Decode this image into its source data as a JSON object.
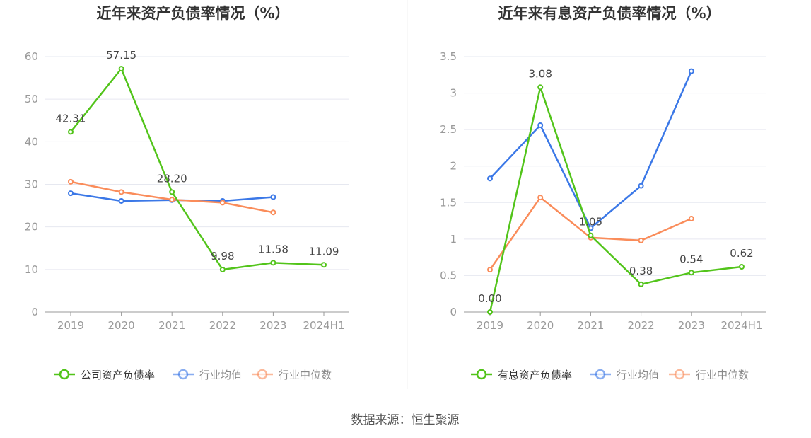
{
  "source": "数据来源：恒生聚源",
  "colors": {
    "company": "#52c41a",
    "avg": "#3b78e7",
    "median": "#fa8c5a",
    "grid": "#e6e8f0",
    "axis": "#999999"
  },
  "chart_data": [
    {
      "type": "line",
      "title": "近年来资产负债率情况（%）",
      "categories": [
        "2019",
        "2020",
        "2021",
        "2022",
        "2023",
        "2024H1"
      ],
      "ylim": [
        0,
        60
      ],
      "yticks": [
        0,
        10,
        20,
        30,
        40,
        50,
        60
      ],
      "ytick_labels": [
        "0",
        "10",
        "20",
        "30",
        "40",
        "50",
        "60"
      ],
      "legend_position": "bottom",
      "series": [
        {
          "name": "公司资产负债率",
          "color": "#52c41a",
          "values": [
            42.31,
            57.15,
            28.2,
            9.98,
            11.58,
            11.09
          ],
          "labels": [
            "42.31",
            "57.15",
            "28.20",
            "9.98",
            "11.58",
            "11.09"
          ]
        },
        {
          "name": "行业均值",
          "color": "#3b78e7",
          "values": [
            27.9,
            26.1,
            26.3,
            26.1,
            27.0,
            null
          ]
        },
        {
          "name": "行业中位数",
          "color": "#fa8c5a",
          "values": [
            30.6,
            28.2,
            26.4,
            25.7,
            23.4,
            null
          ]
        }
      ]
    },
    {
      "type": "line",
      "title": "近年来有息资产负债率情况（%）",
      "categories": [
        "2019",
        "2020",
        "2021",
        "2022",
        "2023",
        "2024H1"
      ],
      "ylim": [
        0,
        3.5
      ],
      "yticks": [
        0,
        0.5,
        1,
        1.5,
        2,
        2.5,
        3,
        3.5
      ],
      "ytick_labels": [
        "0",
        "0.5",
        "1",
        "1.5",
        "2",
        "2.5",
        "3",
        "3.5"
      ],
      "legend_position": "bottom",
      "series": [
        {
          "name": "有息资产负债率",
          "color": "#52c41a",
          "values": [
            0.0,
            3.08,
            1.05,
            0.38,
            0.54,
            0.62
          ],
          "labels": [
            "0.00",
            "3.08",
            "1.05",
            "0.38",
            "0.54",
            "0.62"
          ]
        },
        {
          "name": "行业均值",
          "color": "#3b78e7",
          "values": [
            1.83,
            2.56,
            1.15,
            1.73,
            3.3,
            null
          ]
        },
        {
          "name": "行业中位数",
          "color": "#fa8c5a",
          "values": [
            0.58,
            1.57,
            1.02,
            0.98,
            1.28,
            null
          ]
        }
      ]
    }
  ]
}
